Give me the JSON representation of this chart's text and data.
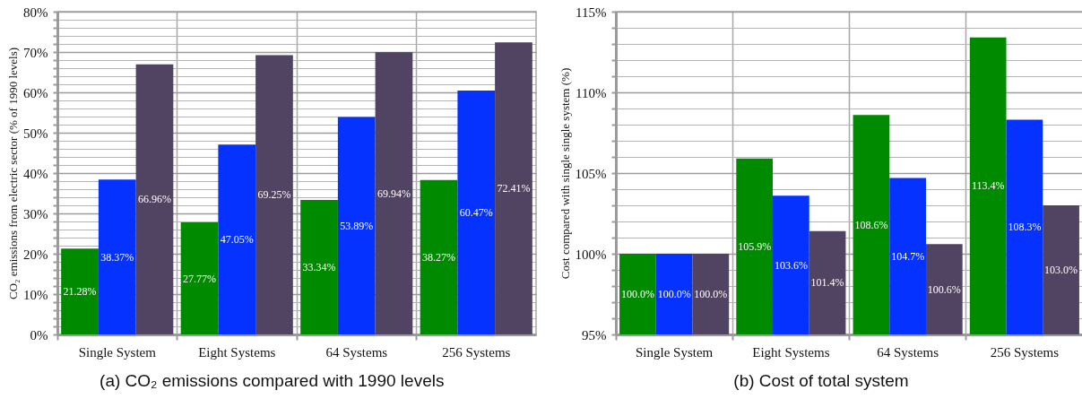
{
  "chart_data": [
    {
      "type": "bar",
      "title": "(a) CO₂ emissions compared with 1990 levels",
      "ylabel": "CO₂ emissions from electric sector (% of 1990 levels)",
      "categories": [
        "Single System",
        "Eight Systems",
        "64 Systems",
        "256 Systems"
      ],
      "series": [
        {
          "color": "#008a00",
          "values": [
            21.28,
            27.77,
            33.34,
            38.27
          ],
          "value_labels": [
            "21.28%",
            "27.77%",
            "33.34%",
            "38.27%"
          ]
        },
        {
          "color": "#0532ff",
          "values": [
            38.37,
            47.05,
            53.89,
            60.47
          ],
          "value_labels": [
            "38.37%",
            "47.05%",
            "53.89%",
            "60.47%"
          ]
        },
        {
          "color": "#514362",
          "values": [
            66.96,
            69.25,
            69.94,
            72.41
          ],
          "value_labels": [
            "66.96%",
            "69.25%",
            "69.94%",
            "72.41%"
          ]
        }
      ],
      "ylim": [
        0,
        80
      ],
      "yticks": [
        {
          "value": 0,
          "label": "0%"
        },
        {
          "value": 2,
          "label": null
        },
        {
          "value": 4,
          "label": null
        },
        {
          "value": 6,
          "label": null
        },
        {
          "value": 8,
          "label": null
        },
        {
          "value": 10,
          "label": "10%"
        },
        {
          "value": 12,
          "label": null
        },
        {
          "value": 14,
          "label": null
        },
        {
          "value": 16,
          "label": null
        },
        {
          "value": 18,
          "label": null
        },
        {
          "value": 20,
          "label": "20%"
        },
        {
          "value": 22,
          "label": null
        },
        {
          "value": 24,
          "label": null
        },
        {
          "value": 26,
          "label": null
        },
        {
          "value": 28,
          "label": null
        },
        {
          "value": 30,
          "label": "30%"
        },
        {
          "value": 32,
          "label": null
        },
        {
          "value": 34,
          "label": null
        },
        {
          "value": 36,
          "label": null
        },
        {
          "value": 38,
          "label": null
        },
        {
          "value": 40,
          "label": "40%"
        },
        {
          "value": 42,
          "label": null
        },
        {
          "value": 44,
          "label": null
        },
        {
          "value": 46,
          "label": null
        },
        {
          "value": 48,
          "label": null
        },
        {
          "value": 50,
          "label": "50%"
        },
        {
          "value": 52,
          "label": null
        },
        {
          "value": 54,
          "label": null
        },
        {
          "value": 56,
          "label": null
        },
        {
          "value": 58,
          "label": null
        },
        {
          "value": 60,
          "label": "60%"
        },
        {
          "value": 62,
          "label": null
        },
        {
          "value": 64,
          "label": null
        },
        {
          "value": 66,
          "label": null
        },
        {
          "value": 68,
          "label": null
        },
        {
          "value": 70,
          "label": "70%"
        },
        {
          "value": 72,
          "label": null
        },
        {
          "value": 74,
          "label": null
        },
        {
          "value": 76,
          "label": null
        },
        {
          "value": 78,
          "label": null
        },
        {
          "value": 80,
          "label": "80%"
        }
      ],
      "grid": true
    },
    {
      "type": "bar",
      "title": "(b) Cost of total system",
      "ylabel": "Cost compared with single single system (%)",
      "categories": [
        "Single System",
        "Eight Systems",
        "64 Systems",
        "256 Systems"
      ],
      "series": [
        {
          "color": "#008a00",
          "values": [
            100.0,
            105.9,
            108.6,
            113.4
          ],
          "value_labels": [
            "100.0%",
            "105.9%",
            "108.6%",
            "113.4%"
          ]
        },
        {
          "color": "#0532ff",
          "values": [
            100.0,
            103.6,
            104.7,
            108.3
          ],
          "value_labels": [
            "100.0%",
            "103.6%",
            "104.7%",
            "108.3%"
          ]
        },
        {
          "color": "#514362",
          "values": [
            100.0,
            101.4,
            100.6,
            103.0
          ],
          "value_labels": [
            "100.0%",
            "101.4%",
            "100.6%",
            "103.0%"
          ]
        }
      ],
      "ylim": [
        95,
        115
      ],
      "yticks": [
        {
          "value": 95,
          "label": "95%"
        },
        {
          "value": 96,
          "label": null
        },
        {
          "value": 97,
          "label": null
        },
        {
          "value": 98,
          "label": null
        },
        {
          "value": 99,
          "label": null
        },
        {
          "value": 100,
          "label": "100%"
        },
        {
          "value": 101,
          "label": null
        },
        {
          "value": 102,
          "label": null
        },
        {
          "value": 103,
          "label": null
        },
        {
          "value": 104,
          "label": null
        },
        {
          "value": 105,
          "label": "105%"
        },
        {
          "value": 106,
          "label": null
        },
        {
          "value": 107,
          "label": null
        },
        {
          "value": 108,
          "label": null
        },
        {
          "value": 109,
          "label": null
        },
        {
          "value": 110,
          "label": "110%"
        },
        {
          "value": 111,
          "label": null
        },
        {
          "value": 112,
          "label": null
        },
        {
          "value": 113,
          "label": null
        },
        {
          "value": 114,
          "label": null
        },
        {
          "value": 115,
          "label": "115%"
        }
      ],
      "grid": true
    }
  ]
}
